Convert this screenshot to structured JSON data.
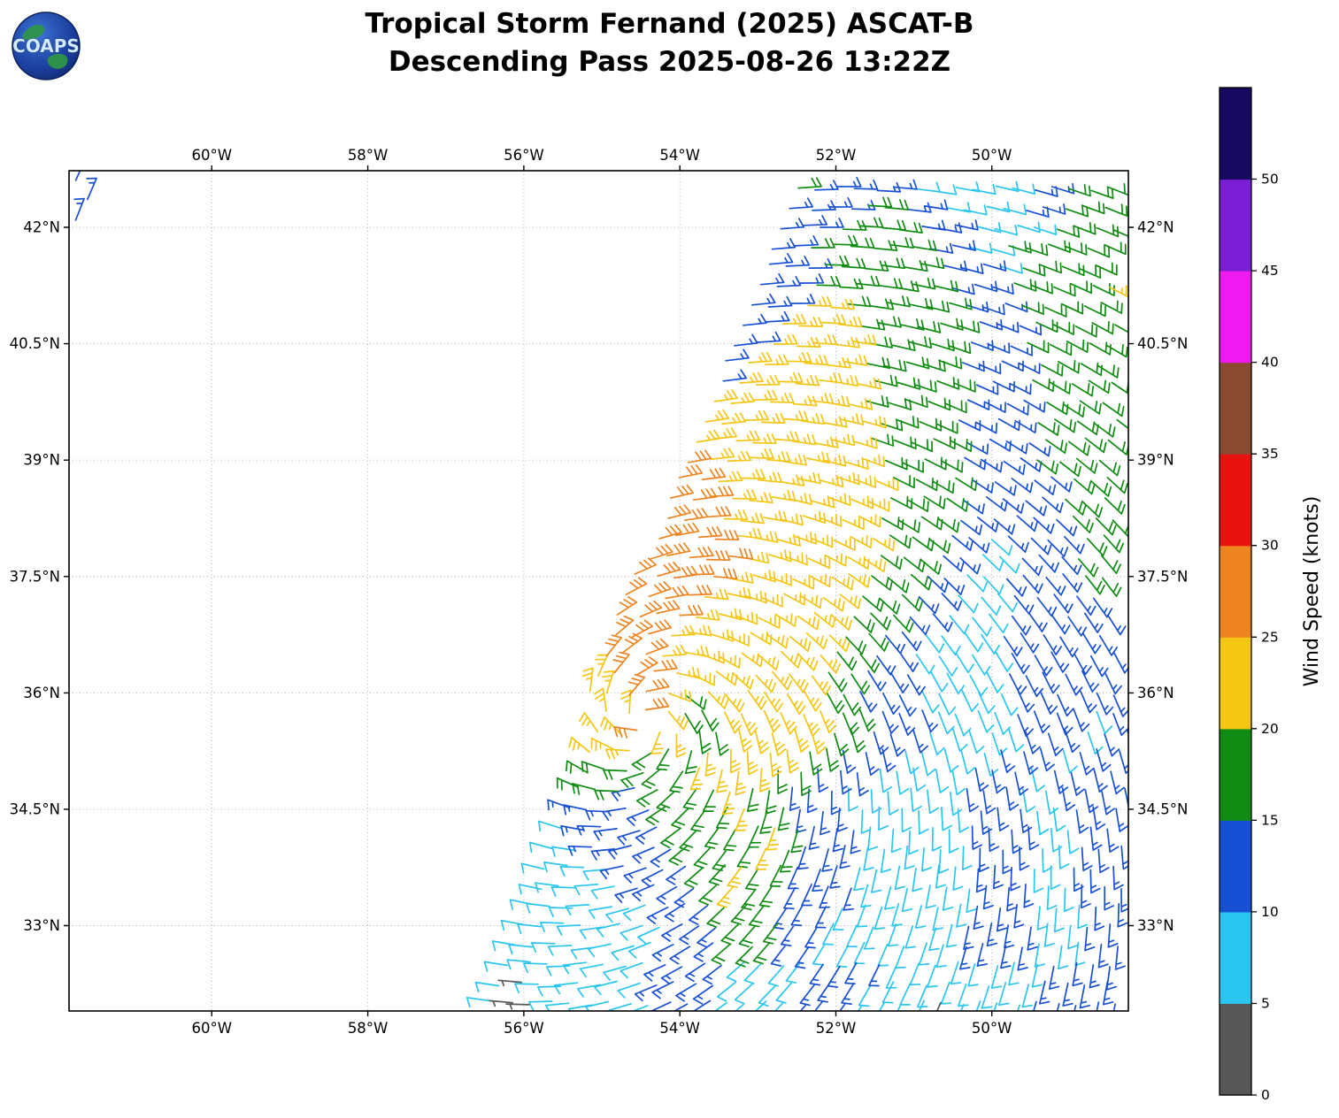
{
  "header": {
    "title_line1": "Tropical Storm Fernand (2025) ASCAT-B",
    "title_line2": "Descending Pass 2025-08-26 13:22Z",
    "logo_text": "COAPS"
  },
  "chart_data": {
    "type": "scatter",
    "subtype": "wind_barb_field",
    "title": "Tropical Storm Fernand (2025) ASCAT-B Descending Pass 2025-08-26 13:22Z",
    "units": "knots",
    "lon_range": [
      -61.83,
      -48.25
    ],
    "lat_range": [
      31.9,
      42.73
    ],
    "grid": "dotted",
    "x_ticks": [
      {
        "lon": -60,
        "label": "60°W"
      },
      {
        "lon": -58,
        "label": "58°W"
      },
      {
        "lon": -56,
        "label": "56°W"
      },
      {
        "lon": -54,
        "label": "54°W"
      },
      {
        "lon": -52,
        "label": "52°W"
      },
      {
        "lon": -50,
        "label": "50°W"
      }
    ],
    "y_ticks": [
      {
        "lat": 33,
        "label": "33°N"
      },
      {
        "lat": 34.5,
        "label": "34.5°N"
      },
      {
        "lat": 36,
        "label": "36°N"
      },
      {
        "lat": 37.5,
        "label": "37.5°N"
      },
      {
        "lat": 39,
        "label": "39°N"
      },
      {
        "lat": 40.5,
        "label": "40.5°N"
      },
      {
        "lat": 42,
        "label": "42°N"
      }
    ],
    "palette": {
      "g": {
        "name": "gray-0-5",
        "speed": 3,
        "color": "#575757"
      },
      "c": {
        "name": "cyan-5-10",
        "speed": 8,
        "color": "#2bc6f0"
      },
      "b": {
        "name": "blue-10-15",
        "speed": 13,
        "color": "#1850d4"
      },
      "G": {
        "name": "green-15-20",
        "speed": 18,
        "color": "#108c12"
      },
      "y": {
        "name": "yellow-20-25",
        "speed": 23,
        "color": "#f4c613"
      },
      "o": {
        "name": "orange-25-30",
        "speed": 28,
        "color": "#ee8420"
      }
    },
    "vortex": {
      "center_lon": -54.45,
      "center_lat": 35.65,
      "rotation": "counterclockwise",
      "inflow_deg": 20
    },
    "lon_step": 0.25,
    "rows": [
      {
        "lat": 32.0,
        "start_lon": -56.4,
        "cells": "cggccccccbbbccccbbbccccgccccbbbbb"
      },
      {
        "lat": 32.25,
        "start_lon": -56.3,
        "cells": "cgccccccbbbbccccbbbcccccccccbbbb"
      },
      {
        "lat": 32.5,
        "start_lon": -56.2,
        "cells": "ccccccccbbbbccccbbbbccccccccbbbb"
      },
      {
        "lat": 32.75,
        "start_lon": -56.11,
        "cells": "ccccccccbbbGGGbbcccccccbbbbcccbb"
      },
      {
        "lat": 33.0,
        "start_lon": -56.01,
        "cells": "ccccccccbbbGGGbbcccccccbbbbccbbb"
      },
      {
        "lat": 33.25,
        "start_lon": -55.91,
        "cells": "cccccccbbbGGGbbbcccccccbbbcccbb"
      },
      {
        "lat": 33.5,
        "start_lon": -55.81,
        "cells": "cccccbbbbGyGGbbbbccccccbbbccbbb"
      },
      {
        "lat": 33.75,
        "start_lon": -55.71,
        "cells": "ccccbbbbGGyGGbbbccccccbbbccbbb"
      },
      {
        "lat": 34.0,
        "start_lon": -55.62,
        "cells": "ccbbbbbGGGGyGbbbccccccbbbccbbb"
      },
      {
        "lat": 34.25,
        "start_lon": -55.52,
        "cells": "cbbbbbGGGGGyGbbbcccccbbbbccbbb"
      },
      {
        "lat": 34.5,
        "start_lon": -55.42,
        "cells": "bbbbbGGGGyGGbbbccccccbbbccbbb"
      },
      {
        "lat": 34.75,
        "start_lon": -55.32,
        "cells": "GGGbGGGGyGGbbbccccccbbbccbbbb"
      },
      {
        "lat": 35.0,
        "start_lon": -55.22,
        "cells": "GGGGGGyyyyGGbbbcccccbbbcbbbb"
      },
      {
        "lat": 35.25,
        "start_lon": -55.12,
        "cells": "yyyGGGyyyyyGGbbbcccccbbbcbbb"
      },
      {
        "lat": 35.5,
        "start_lon": -55.03,
        "cells": "yyoyyGGyyyyyGGbbbcccccbbbcbb"
      },
      {
        "lat": 35.75,
        "start_lon": -54.93,
        "cells": "yyoyGGyyyyyyGGbbbccccbbbbcb"
      },
      {
        "lat": 36.0,
        "start_lon": -55.15,
        "cells": "yyooyGyyyyyyGGbbbcccccbbbbbb"
      },
      {
        "lat": 36.25,
        "start_lon": -55.06,
        "cells": "yoooyyyyyyyyGGbbbccccbbbbbb"
      },
      {
        "lat": 36.5,
        "start_lon": -54.96,
        "cells": "oooyyyyyyyyyGGbbcccccbbbbbb"
      },
      {
        "lat": 36.75,
        "start_lon": -54.86,
        "cells": "oooyyyyyyyyyGGbbccccbbbbbb"
      },
      {
        "lat": 37.0,
        "start_lon": -54.77,
        "cells": "ooooyyyyyyyyGGGbbcccbbbbbb"
      },
      {
        "lat": 37.25,
        "start_lon": -54.67,
        "cells": "ooooyyyyyyyyGGGbbcccbbbbb"
      },
      {
        "lat": 37.5,
        "start_lon": -54.57,
        "cells": "oooooyyyyyyyGGGbbccbbbbGG"
      },
      {
        "lat": 37.75,
        "start_lon": -54.38,
        "cells": "oooooyyyyyyyGGGbbccbbbGG"
      },
      {
        "lat": 38.0,
        "start_lon": -54.28,
        "cells": "ooooyyyyyyyyGGGbbcbbbbGG"
      },
      {
        "lat": 38.25,
        "start_lon": -54.18,
        "cells": "oooyyyyyyyyGGGGbbbbbbGGG"
      },
      {
        "lat": 38.5,
        "start_lon": -54.08,
        "cells": "oooyyyyyyyyGGGGbbbbbGGG"
      },
      {
        "lat": 38.75,
        "start_lon": -53.98,
        "cells": "ooyyyyyyyyyGGGGbbbbbGGG"
      },
      {
        "lat": 39.0,
        "start_lon": -53.88,
        "cells": "oyyyyyyyyyGGGGbbbbGGGG"
      },
      {
        "lat": 39.25,
        "start_lon": -53.78,
        "cells": "yyyyyyyyyGGGGGbbbbGGGG"
      },
      {
        "lat": 39.5,
        "start_lon": -53.68,
        "cells": "yyyyyyyyyGGGGbbbbGGGGG"
      },
      {
        "lat": 39.75,
        "start_lon": -53.58,
        "cells": "yyyyyyyyGGGGGbbbbGGGG"
      },
      {
        "lat": 40.0,
        "start_lon": -53.48,
        "cells": "byyyyyyyGGGGGbbbGGGGG"
      },
      {
        "lat": 40.25,
        "start_lon": -53.38,
        "cells": "byyyyyyGGGGGbbbbGGGG"
      },
      {
        "lat": 40.5,
        "start_lon": -53.28,
        "cells": "bbyyyyyGGGGGbbbGGGGG"
      },
      {
        "lat": 40.75,
        "start_lon": -53.18,
        "cells": "bbyyyyGGGGGGbbbGGGGG"
      },
      {
        "lat": 41.0,
        "start_lon": -53.08,
        "cells": "bbbyyGGGGGGbbbGGGGG"
      },
      {
        "lat": 41.25,
        "start_lon": -52.98,
        "cells": "bbbGGGGGGGbbbGGGGGy"
      },
      {
        "lat": 41.5,
        "start_lon": -52.88,
        "cells": "bbbGGGGGGbbbcGGGGG"
      },
      {
        "lat": 41.75,
        "start_lon": -52.78,
        "cells": "bbGGGGGGbbccGGGGGG"
      },
      {
        "lat": 42.0,
        "start_lon": -52.68,
        "cells": "bbbGGGGbbbccccGGGG"
      },
      {
        "lat": 42.25,
        "start_lon": -52.58,
        "cells": "bbbbGGbbccccbbGGG"
      },
      {
        "lat": 42.5,
        "start_lon": -52.48,
        "cells": "GbbbbbccccccbbGGG"
      }
    ],
    "extra_barbs": [
      {
        "lon": -61.78,
        "lat": 42.6,
        "key": "b"
      },
      {
        "lon": -61.6,
        "lat": 42.36,
        "key": "b"
      },
      {
        "lon": -61.72,
        "lat": 42.1,
        "key": "b"
      }
    ],
    "colorbar": {
      "title": "Wind Speed (knots)",
      "tick_labels": [
        "0",
        "5",
        "10",
        "15",
        "20",
        "25",
        "30",
        "35",
        "40",
        "45",
        "50"
      ],
      "colors_bottom_to_top": [
        "#575757",
        "#2bc6f0",
        "#1850d4",
        "#108c12",
        "#f4c613",
        "#ee8420",
        "#e8120e",
        "#8a4a31",
        "#ef1aef",
        "#7b1fd4",
        "#17095f"
      ]
    }
  }
}
